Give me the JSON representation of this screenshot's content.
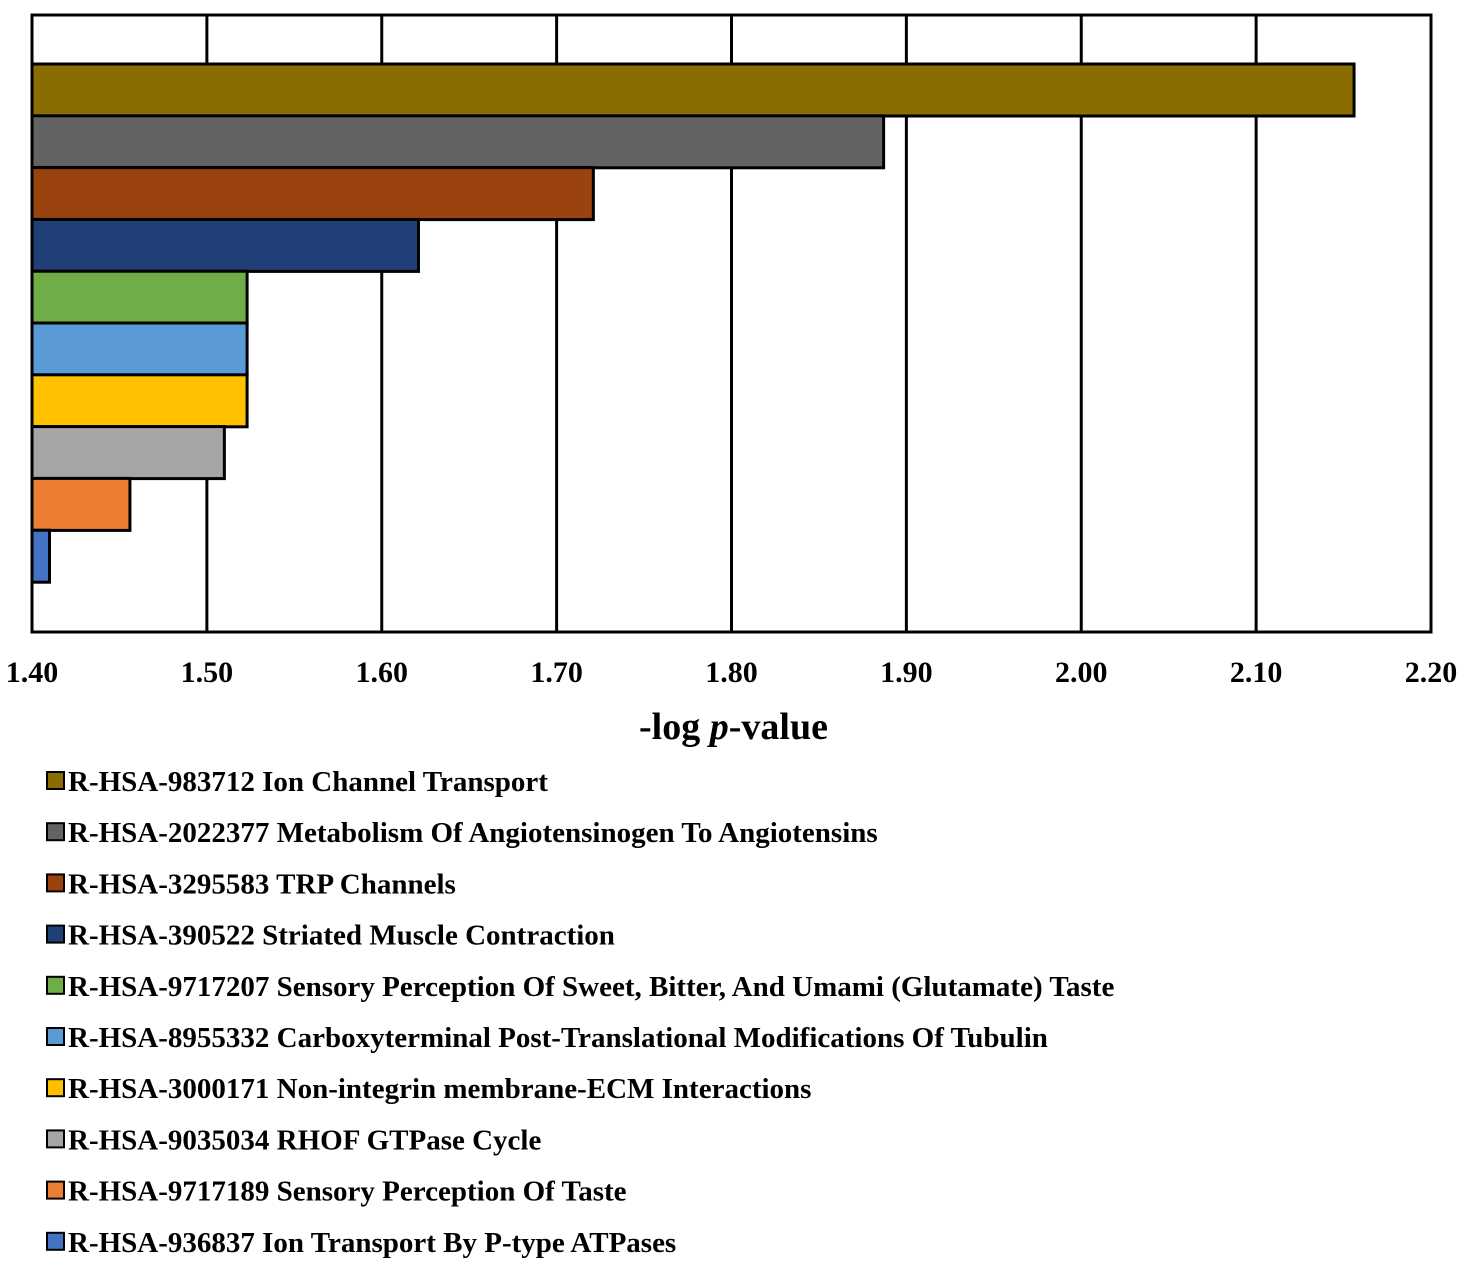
{
  "chart_data": {
    "type": "bar",
    "orientation": "horizontal",
    "title": "",
    "xlabel_prefix": "-log ",
    "xlabel_italic": "p",
    "xlabel_suffix": "-value",
    "xlim": [
      1.4,
      2.2
    ],
    "xticks": [
      "1.40",
      "1.50",
      "1.60",
      "1.70",
      "1.80",
      "1.90",
      "2.00",
      "2.10",
      "2.20"
    ],
    "grid": true,
    "legend_position": "bottom",
    "categories": [
      "R-HSA-983712 Ion Channel Transport",
      "R-HSA-2022377 Metabolism Of Angiotensinogen To Angiotensins",
      "R-HSA-3295583 TRP Channels",
      "R-HSA-390522 Striated Muscle Contraction",
      "R-HSA-9717207 Sensory Perception Of Sweet, Bitter, And Umami (Glutamate) Taste",
      "R-HSA-8955332 Carboxyterminal Post-Translational Modifications Of Tubulin",
      "R-HSA-3000171 Non-integrin membrane-ECM Interactions",
      "R-HSA-9035034 RHOF GTPase Cycle",
      "R-HSA-9717189 Sensory Perception Of Taste",
      "R-HSA-936837 Ion Transport By P-type ATPases"
    ],
    "values": [
      2.156,
      1.887,
      1.721,
      1.621,
      1.523,
      1.523,
      1.523,
      1.51,
      1.456,
      1.41
    ],
    "colors": [
      "#8B6C00",
      "#636363",
      "#9A430E",
      "#1F3F76",
      "#6FAD47",
      "#5B9BD5",
      "#FFC000",
      "#A5A5A5",
      "#ED7D31",
      "#4472C4"
    ]
  }
}
